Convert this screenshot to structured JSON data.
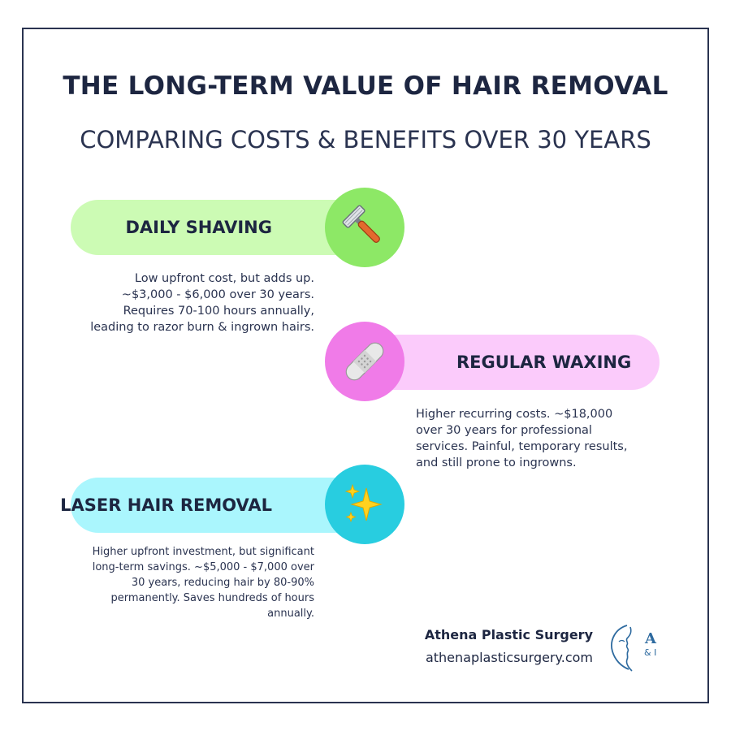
{
  "header": {
    "title": "THE LONG-TERM VALUE OF HAIR REMOVAL",
    "subtitle": "COMPARING COSTS & BENEFITS OVER 30 YEARS"
  },
  "colors": {
    "shaving_pill": "#ccfbb4",
    "shaving_circle": "#8de866",
    "waxing_pill": "#fbcbfb",
    "waxing_circle": "#f07be8",
    "laser_pill": "#aaf6fd",
    "laser_circle": "#28cde0",
    "text": "#1d2641",
    "brand": "#2d6a9f"
  },
  "options": [
    {
      "label": "DAILY SHAVING",
      "icon": "razor-icon",
      "description": [
        "Low upfront cost, but adds up.",
        "~$3,000 - $6,000 over 30 years.",
        "Requires 70-100 hours annually,",
        "leading to razor burn & ingrown hairs."
      ]
    },
    {
      "label": "REGULAR WAXING",
      "icon": "bandage-icon",
      "description": [
        "Higher recurring costs. ~$18,000",
        "over 30 years for professional",
        "services. Painful, temporary results,",
        "and still prone to ingrowns."
      ]
    },
    {
      "label": "LASER HAIR REMOVAL",
      "icon": "sparkles-icon",
      "description": [
        "Higher upfront investment, but significant",
        "long-term savings. ~$5,000 - $7,000 over",
        "30 years, reducing hair by 80-90%",
        "permanently. Saves hundreds of hours",
        "annually."
      ]
    }
  ],
  "footer": {
    "brand_name": "Athena Plastic Surgery",
    "website": "athenaplasticsurgery.com",
    "logo_letter": "A",
    "logo_sub": "& I"
  }
}
